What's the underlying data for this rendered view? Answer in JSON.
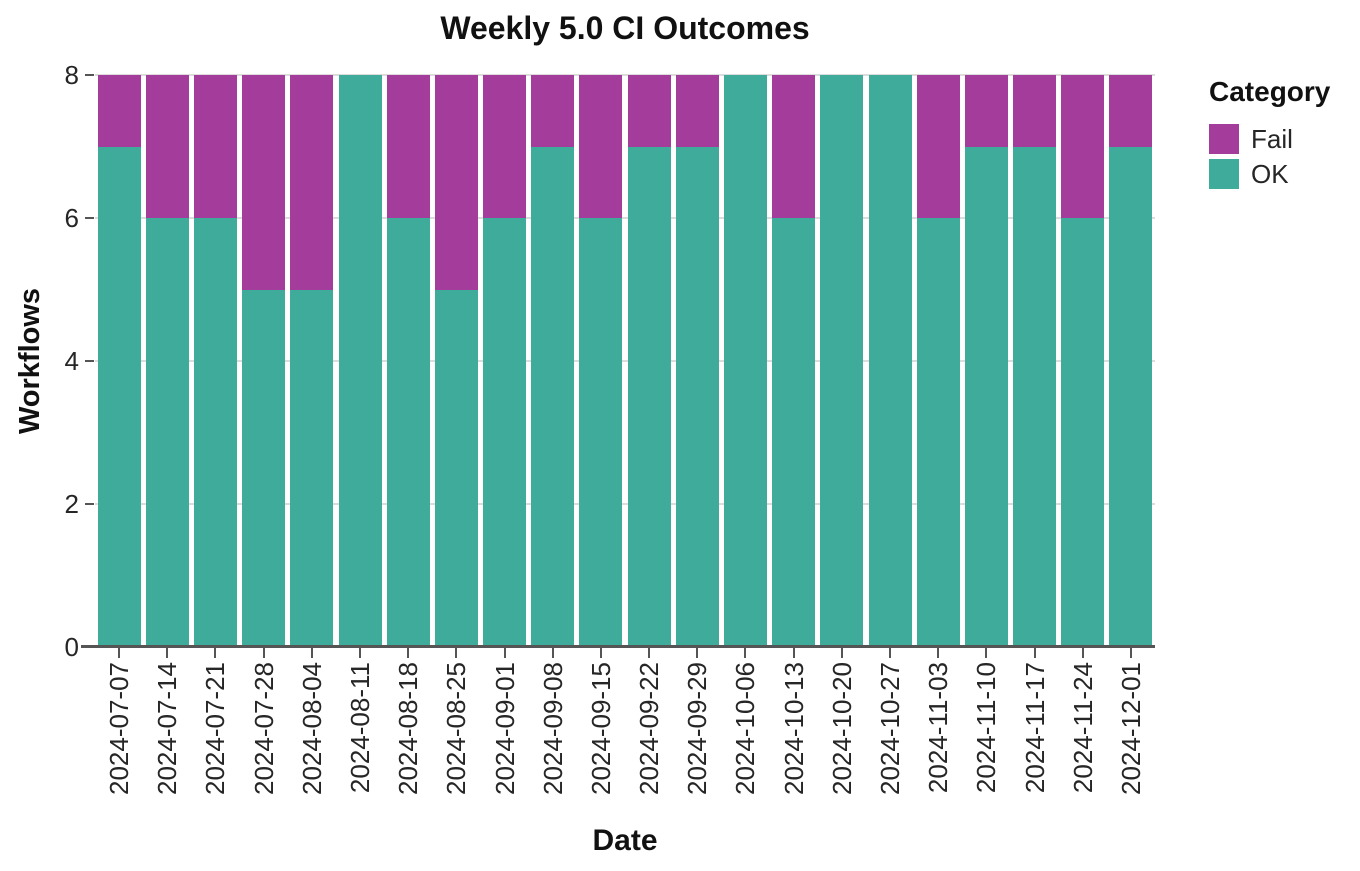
{
  "chart_data": {
    "type": "bar",
    "stacked": true,
    "title": "Weekly 5.0 CI Outcomes",
    "xlabel": "Date",
    "ylabel": "Workflows",
    "ylim": [
      0,
      8
    ],
    "yticks": [
      0,
      2,
      4,
      6,
      8
    ],
    "grid": true,
    "legend_position": "right",
    "categories": [
      "2024-07-07",
      "2024-07-14",
      "2024-07-21",
      "2024-07-28",
      "2024-08-04",
      "2024-08-11",
      "2024-08-18",
      "2024-08-25",
      "2024-09-01",
      "2024-09-08",
      "2024-09-15",
      "2024-09-22",
      "2024-09-29",
      "2024-10-06",
      "2024-10-13",
      "2024-10-20",
      "2024-10-27",
      "2024-11-03",
      "2024-11-10",
      "2024-11-17",
      "2024-11-24",
      "2024-12-01"
    ],
    "series": [
      {
        "name": "OK",
        "color": "#3EAB9B",
        "values": [
          7,
          6,
          6,
          5,
          5,
          8,
          6,
          5,
          6,
          7,
          6,
          7,
          7,
          8,
          6,
          8,
          8,
          6,
          7,
          7,
          6,
          7
        ]
      },
      {
        "name": "Fail",
        "color": "#A43C9C",
        "values": [
          1,
          2,
          2,
          3,
          3,
          0,
          2,
          3,
          2,
          1,
          2,
          1,
          1,
          0,
          2,
          0,
          0,
          2,
          1,
          1,
          2,
          1
        ]
      }
    ],
    "legend": {
      "title": "Category",
      "items": [
        {
          "label": "Fail",
          "color": "#A43C9C"
        },
        {
          "label": "OK",
          "color": "#3EAB9B"
        }
      ]
    }
  }
}
